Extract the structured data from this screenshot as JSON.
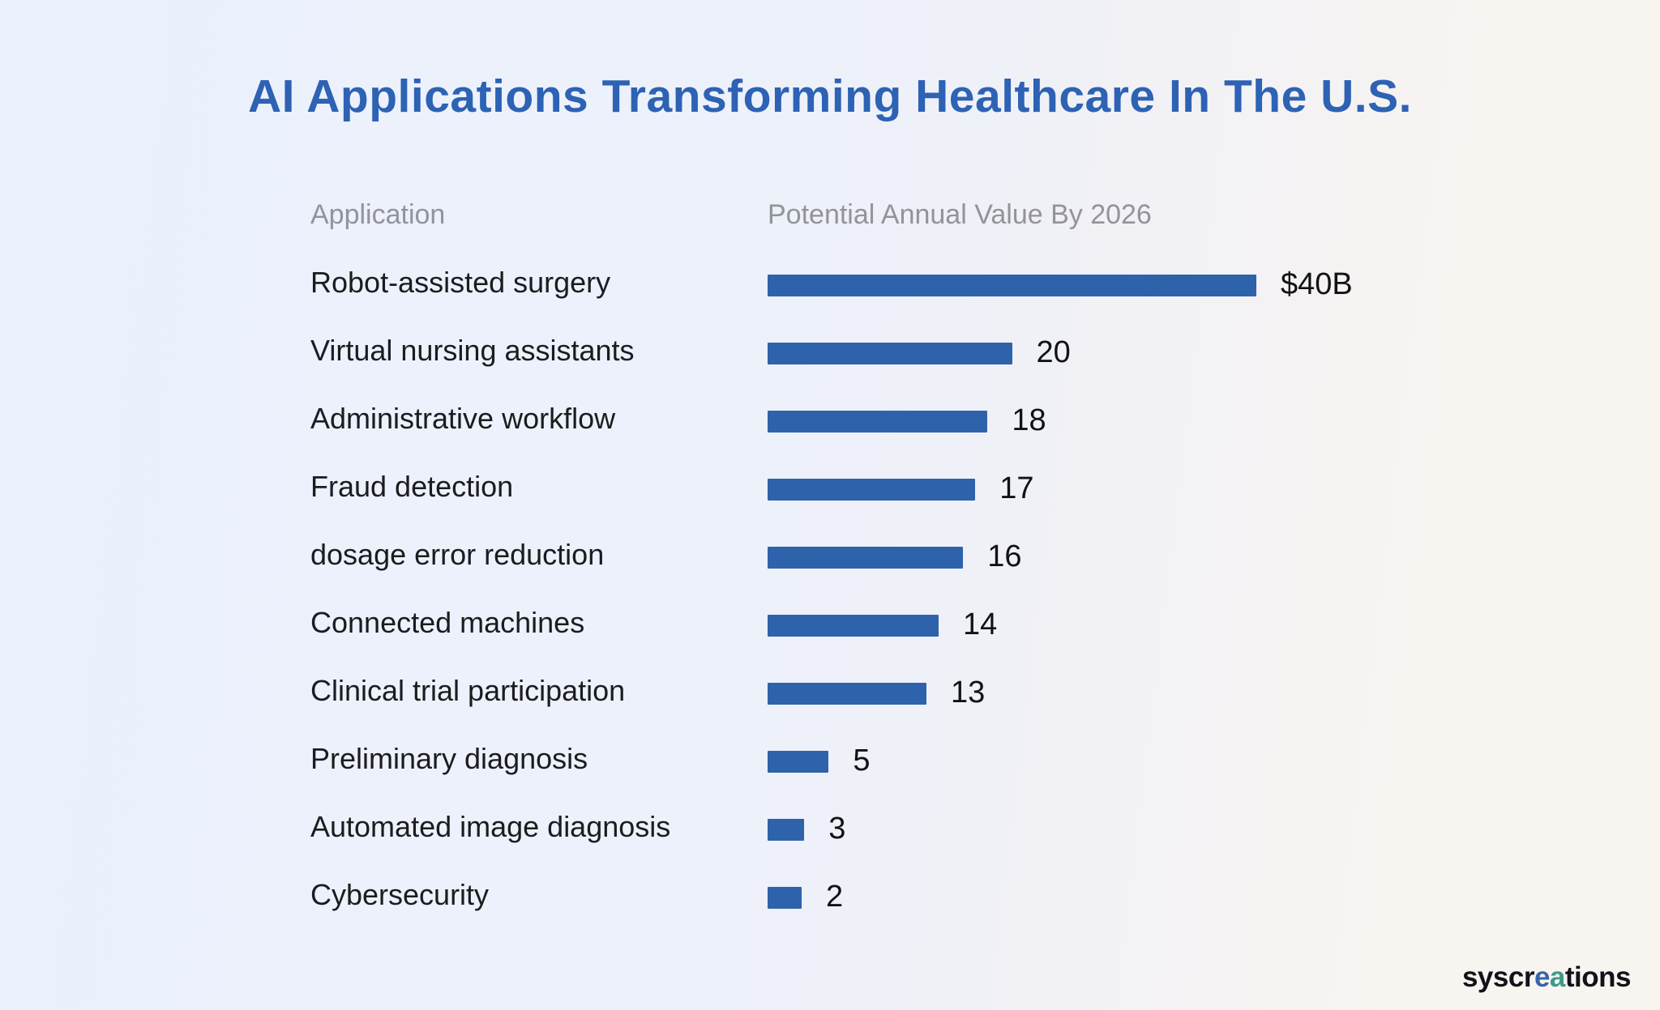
{
  "title": "AI Applications Transforming Healthcare In The U.S.",
  "columns": {
    "application": "Application",
    "value": "Potential Annual Value By 2026"
  },
  "colors": {
    "bar": "#2E63AC",
    "title_text": "#2D62B4",
    "header_text": "#939399",
    "logo_e": "#3566A8",
    "logo_a": "#3D9B8A"
  },
  "logo": {
    "part1": "syscr",
    "part2": "e",
    "part3": "a",
    "part4": "tions"
  },
  "chart_data": {
    "type": "bar",
    "orientation": "horizontal",
    "title": "AI Applications Transforming Healthcare In The U.S.",
    "xlabel": "Potential Annual Value By 2026",
    "ylabel": "Application",
    "xlim": [
      0,
      40
    ],
    "grid": false,
    "legend": "none",
    "categories": [
      "Robot-assisted surgery",
      "Virtual nursing assistants",
      "Administrative workflow",
      "Fraud detection",
      "dosage error reduction",
      "Connected machines",
      "Clinical trial participation",
      "Preliminary diagnosis",
      "Automated image diagnosis",
      "Cybersecurity"
    ],
    "values": [
      40,
      20,
      18,
      17,
      16,
      14,
      13,
      5,
      3,
      2
    ],
    "value_labels": [
      "$40B",
      "20",
      "18",
      "17",
      "16",
      "14",
      "13",
      "5",
      "3",
      "2"
    ]
  }
}
